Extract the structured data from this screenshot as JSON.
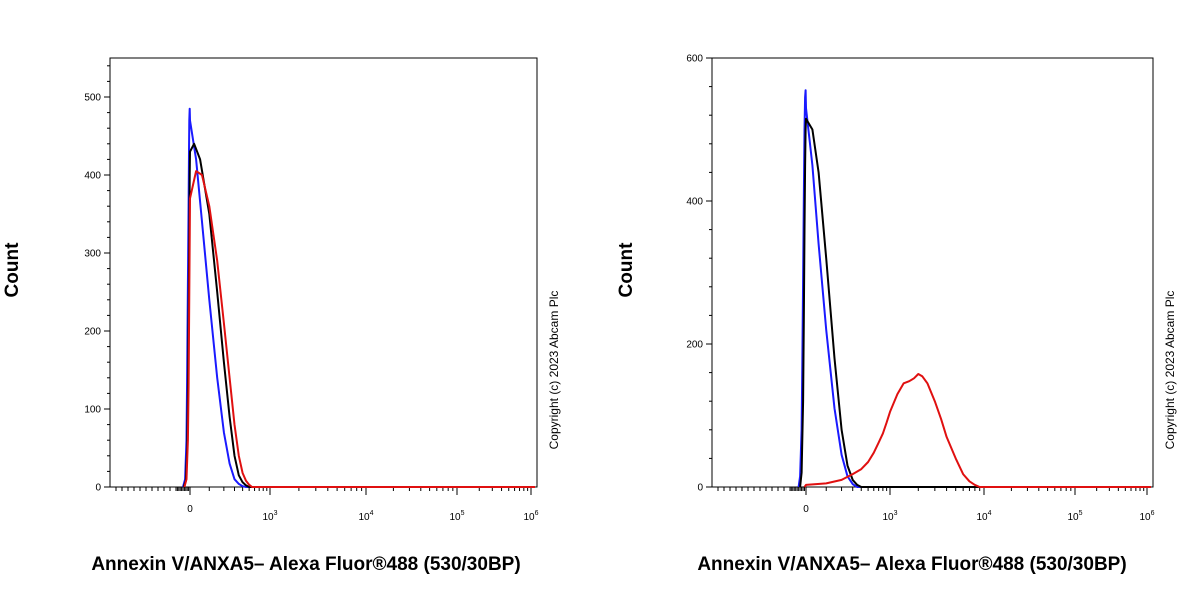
{
  "colors": {
    "blue": "#1a1aff",
    "black": "#000000",
    "red": "#e01010"
  },
  "chart_data": [
    {
      "type": "line",
      "title": "",
      "xlabel": "Annexin V/ANXA5– Alexa Fluor®488 (530/30BP)",
      "ylabel": "Count",
      "x_scale": "biexponential",
      "ylim": [
        0,
        550
      ],
      "y_ticks": [
        0,
        100,
        200,
        300,
        400,
        500
      ],
      "y_tick_labels": [
        "0",
        "100",
        "200",
        "300",
        "400",
        "500"
      ],
      "x_ticks": [
        0,
        1000,
        10000,
        100000,
        1000000
      ],
      "x_tick_labels": [
        {
          "base": "0",
          "exp": ""
        },
        {
          "base": "10",
          "exp": "3"
        },
        {
          "base": "10",
          "exp": "4"
        },
        {
          "base": "10",
          "exp": "5"
        },
        {
          "base": "10",
          "exp": "6"
        }
      ],
      "copyright": "Copyright (c) 2023 Abcam Plc",
      "grid": false,
      "series": [
        {
          "color": "#1a1aff",
          "x": [
            -500,
            -350,
            -250,
            -200,
            -150,
            -100,
            -70,
            -50,
            -20,
            0,
            30,
            60,
            100,
            150,
            200,
            250,
            300,
            350,
            400,
            450
          ],
          "values": [
            0,
            10,
            60,
            150,
            260,
            360,
            430,
            470,
            485,
            470,
            420,
            340,
            240,
            140,
            70,
            30,
            10,
            4,
            1,
            0
          ]
        },
        {
          "color": "#000000",
          "x": [
            -450,
            -300,
            -200,
            -150,
            -100,
            -50,
            -20,
            0,
            20,
            50,
            100,
            150,
            200,
            250,
            300,
            350,
            400,
            450,
            500
          ],
          "values": [
            0,
            8,
            50,
            120,
            220,
            330,
            400,
            430,
            440,
            420,
            350,
            250,
            160,
            90,
            40,
            15,
            6,
            2,
            0
          ]
        },
        {
          "color": "#e01010",
          "x": [
            -400,
            -250,
            -150,
            -100,
            -50,
            0,
            30,
            60,
            100,
            150,
            200,
            250,
            300,
            350,
            400,
            450,
            500,
            550
          ],
          "values": [
            0,
            10,
            60,
            130,
            250,
            370,
            405,
            400,
            360,
            290,
            210,
            140,
            80,
            40,
            18,
            8,
            3,
            0
          ]
        }
      ]
    },
    {
      "type": "line",
      "title": "",
      "xlabel": "Annexin V/ANXA5– Alexa Fluor®488 (530/30BP)",
      "ylabel": "Count",
      "x_scale": "biexponential",
      "ylim": [
        0,
        600
      ],
      "y_ticks": [
        0,
        200,
        400,
        600
      ],
      "y_tick_labels": [
        "0",
        "200",
        "400",
        "600"
      ],
      "x_ticks": [
        0,
        1000,
        10000,
        100000,
        1000000
      ],
      "x_tick_labels": [
        {
          "base": "0",
          "exp": ""
        },
        {
          "base": "10",
          "exp": "3"
        },
        {
          "base": "10",
          "exp": "4"
        },
        {
          "base": "10",
          "exp": "5"
        },
        {
          "base": "10",
          "exp": "6"
        }
      ],
      "copyright": "Copyright (c) 2023 Abcam Plc",
      "grid": false,
      "series": [
        {
          "color": "#1a1aff",
          "x": [
            -500,
            -400,
            -300,
            -250,
            -200,
            -150,
            -100,
            -60,
            -30,
            0,
            30,
            60,
            100,
            150,
            200,
            250,
            300,
            350
          ],
          "values": [
            0,
            15,
            80,
            170,
            290,
            400,
            500,
            545,
            555,
            530,
            450,
            340,
            220,
            110,
            45,
            15,
            4,
            0
          ]
        },
        {
          "color": "#000000",
          "x": [
            -400,
            -300,
            -200,
            -150,
            -100,
            -60,
            -30,
            0,
            30,
            60,
            100,
            150,
            200,
            250,
            300,
            350,
            400
          ],
          "values": [
            0,
            20,
            120,
            230,
            360,
            450,
            500,
            515,
            500,
            440,
            320,
            180,
            80,
            30,
            10,
            3,
            0
          ]
        },
        {
          "color": "#e01010",
          "x": [
            -100,
            0,
            100,
            200,
            300,
            400,
            500,
            600,
            700,
            800,
            900,
            1000,
            1200,
            1400,
            1600,
            1800,
            2000,
            2200,
            2500,
            3000,
            3500,
            4000,
            5000,
            6000,
            7000,
            8000,
            9000
          ],
          "values": [
            0,
            3,
            5,
            10,
            18,
            25,
            35,
            48,
            62,
            75,
            90,
            105,
            130,
            145,
            148,
            152,
            158,
            155,
            145,
            120,
            95,
            70,
            40,
            18,
            8,
            3,
            0
          ]
        }
      ]
    }
  ]
}
